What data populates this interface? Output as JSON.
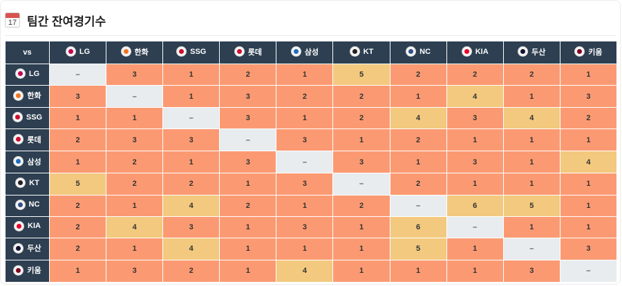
{
  "header": {
    "title": "팀간 잔여경기수",
    "calendar_day": "17"
  },
  "table": {
    "corner_label": "vs",
    "self_mark": "–",
    "teams": [
      {
        "name": "LG",
        "color": "#c30452"
      },
      {
        "name": "한화",
        "color": "#f37321"
      },
      {
        "name": "SSG",
        "color": "#ce0e2d"
      },
      {
        "name": "롯데",
        "color": "#d00f31"
      },
      {
        "name": "삼성",
        "color": "#1f6fbe"
      },
      {
        "name": "KT",
        "color": "#222222"
      },
      {
        "name": "NC",
        "color": "#315288"
      },
      {
        "name": "KIA",
        "color": "#ea0029"
      },
      {
        "name": "두산",
        "color": "#131230"
      },
      {
        "name": "키움",
        "color": "#820024"
      }
    ],
    "rows": [
      [
        "–",
        "3",
        "1",
        "2",
        "1",
        "5",
        "2",
        "2",
        "2",
        "1"
      ],
      [
        "3",
        "–",
        "1",
        "3",
        "2",
        "2",
        "1",
        "4",
        "1",
        "3"
      ],
      [
        "1",
        "1",
        "–",
        "3",
        "1",
        "2",
        "4",
        "3",
        "4",
        "2"
      ],
      [
        "2",
        "3",
        "3",
        "–",
        "3",
        "1",
        "2",
        "1",
        "1",
        "1"
      ],
      [
        "1",
        "2",
        "1",
        "3",
        "–",
        "3",
        "1",
        "3",
        "1",
        "4"
      ],
      [
        "5",
        "2",
        "2",
        "1",
        "3",
        "–",
        "2",
        "1",
        "1",
        "1"
      ],
      [
        "2",
        "1",
        "4",
        "2",
        "1",
        "2",
        "–",
        "6",
        "5",
        "1"
      ],
      [
        "2",
        "4",
        "3",
        "1",
        "3",
        "1",
        "6",
        "–",
        "1",
        "1"
      ],
      [
        "2",
        "1",
        "4",
        "1",
        "1",
        "1",
        "5",
        "1",
        "–",
        "3"
      ],
      [
        "1",
        "3",
        "2",
        "1",
        "4",
        "1",
        "1",
        "1",
        "3",
        "–"
      ]
    ],
    "colors": {
      "low": "#fb9a72",
      "high": "#f2c97e",
      "self": "#e8ecef",
      "header": "#2d3f51"
    }
  }
}
